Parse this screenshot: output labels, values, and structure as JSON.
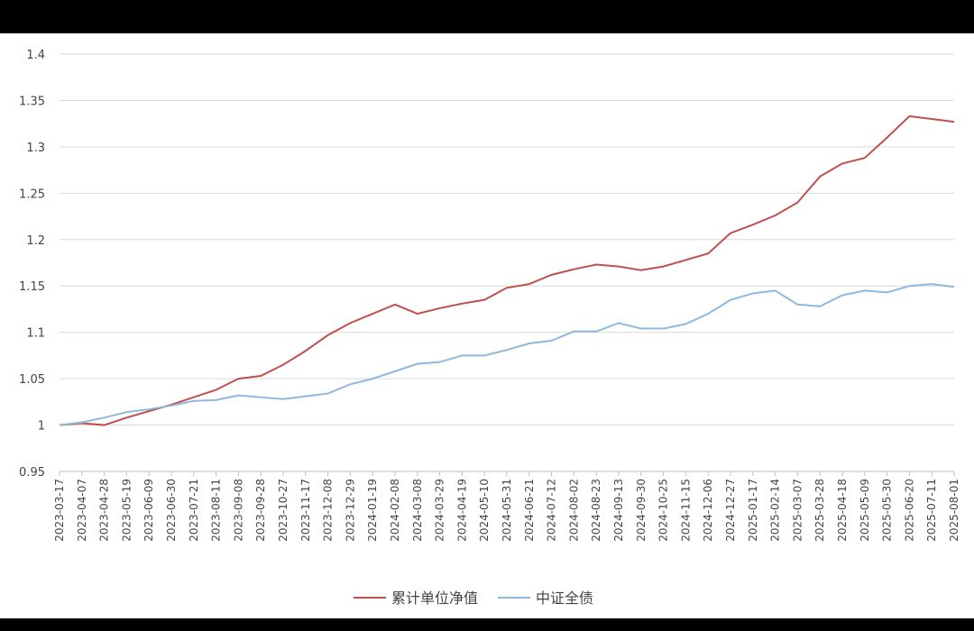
{
  "chart_data": {
    "type": "line",
    "categories": [
      "2023-03-17",
      "2023-04-07",
      "2023-04-28",
      "2023-05-19",
      "2023-06-09",
      "2023-06-30",
      "2023-07-21",
      "2023-08-11",
      "2023-09-08",
      "2023-09-28",
      "2023-10-27",
      "2023-11-17",
      "2023-12-08",
      "2023-12-29",
      "2024-01-19",
      "2024-02-08",
      "2024-03-08",
      "2024-03-29",
      "2024-04-19",
      "2024-05-10",
      "2024-05-31",
      "2024-06-21",
      "2024-07-12",
      "2024-08-02",
      "2024-08-23",
      "2024-09-13",
      "2024-09-30",
      "2024-10-25",
      "2024-11-15",
      "2024-12-06",
      "2024-12-27",
      "2025-01-17",
      "2025-02-14",
      "2025-03-07",
      "2025-03-28",
      "2025-04-18",
      "2025-05-09",
      "2025-05-30",
      "2025-06-20",
      "2025-07-11",
      "2025-08-01"
    ],
    "series": [
      {
        "name": "累计单位净值",
        "color": "#c0504d",
        "values": [
          1.0,
          1.002,
          1.0,
          1.008,
          1.015,
          1.022,
          1.03,
          1.038,
          1.05,
          1.053,
          1.065,
          1.08,
          1.097,
          1.11,
          1.12,
          1.13,
          1.12,
          1.126,
          1.131,
          1.135,
          1.148,
          1.152,
          1.162,
          1.168,
          1.173,
          1.171,
          1.167,
          1.171,
          1.178,
          1.185,
          1.207,
          1.216,
          1.226,
          1.24,
          1.268,
          1.282,
          1.288,
          1.31,
          1.333,
          1.33,
          1.327
        ]
      },
      {
        "name": "中证全债",
        "color": "#8fb8dc",
        "values": [
          1.0,
          1.003,
          1.008,
          1.014,
          1.017,
          1.021,
          1.026,
          1.027,
          1.032,
          1.03,
          1.028,
          1.031,
          1.034,
          1.044,
          1.05,
          1.058,
          1.066,
          1.068,
          1.075,
          1.075,
          1.081,
          1.088,
          1.091,
          1.101,
          1.101,
          1.11,
          1.104,
          1.104,
          1.109,
          1.12,
          1.135,
          1.142,
          1.145,
          1.13,
          1.128,
          1.14,
          1.145,
          1.143,
          1.15,
          1.152,
          1.149
        ]
      }
    ],
    "ylim": [
      0.95,
      1.4
    ],
    "yticks": [
      0.95,
      1,
      1.05,
      1.1,
      1.15,
      1.2,
      1.25,
      1.3,
      1.35,
      1.4
    ],
    "grid": true,
    "legend": "bottom"
  }
}
